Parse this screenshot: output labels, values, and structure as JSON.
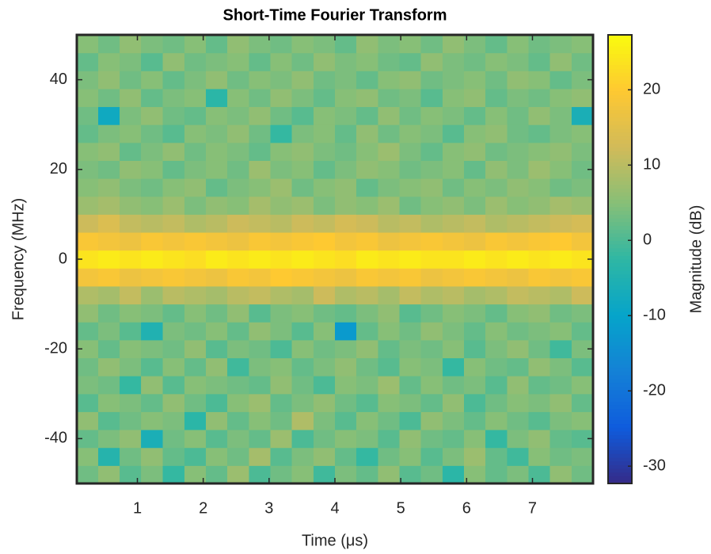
{
  "chart_data": {
    "type": "heatmap",
    "title": "Short-Time Fourier Transform",
    "x_label": "Time (μs)",
    "y_label": "Frequency (MHz)",
    "colorbar_label": "Magnitude (dB)",
    "xlim": [
      0.08,
      7.92
    ],
    "xticks": [
      1,
      2,
      3,
      4,
      5,
      6,
      7
    ],
    "ylim": [
      -50,
      50
    ],
    "yticks": [
      -40,
      -20,
      0,
      20,
      40
    ],
    "clim": [
      -32.3,
      27.3
    ],
    "cticks": [
      -30,
      -20,
      -10,
      0,
      10,
      20
    ],
    "colormap": [
      "#352a87",
      "#0f5cdd",
      "#1481d6",
      "#06a4ca",
      "#2eb7a4",
      "#87bf77",
      "#d1bb59",
      "#fec832",
      "#f9fb0e"
    ],
    "x": [
      0.24,
      0.57,
      0.89,
      1.22,
      1.55,
      1.88,
      2.2,
      2.53,
      2.86,
      3.18,
      3.51,
      3.84,
      4.16,
      4.49,
      4.82,
      5.14,
      5.47,
      5.8,
      6.12,
      6.45,
      6.78,
      7.1,
      7.43,
      7.76
    ],
    "y": [
      -48,
      -44,
      -40,
      -36,
      -32,
      -28,
      -24,
      -20,
      -16,
      -12,
      -8,
      -4,
      0,
      4,
      8,
      12,
      16,
      20,
      24,
      28,
      32,
      36,
      40,
      44,
      48
    ],
    "z": [
      [
        3,
        6,
        1,
        4,
        -2,
        5,
        2,
        7,
        0,
        3,
        5,
        -1,
        4,
        2,
        6,
        1,
        3,
        -3,
        5,
        2,
        4,
        0,
        6,
        3
      ],
      [
        5,
        -4,
        3,
        6,
        2,
        0,
        5,
        3,
        8,
        1,
        4,
        6,
        2,
        -2,
        3,
        5,
        1,
        4,
        7,
        2,
        -1,
        5,
        3,
        4
      ],
      [
        2,
        4,
        6,
        -6,
        3,
        5,
        1,
        4,
        2,
        7,
        0,
        3,
        5,
        4,
        1,
        6,
        3,
        2,
        5,
        -2,
        4,
        6,
        2,
        1
      ],
      [
        6,
        1,
        3,
        5,
        4,
        -3,
        6,
        2,
        5,
        3,
        9,
        4,
        1,
        5,
        3,
        0,
        6,
        4,
        2,
        5,
        3,
        1,
        4,
        5
      ],
      [
        1,
        5,
        4,
        2,
        6,
        3,
        0,
        5,
        7,
        2,
        4,
        6,
        3,
        1,
        5,
        4,
        2,
        6,
        0,
        3,
        5,
        4,
        6,
        2
      ],
      [
        4,
        3,
        -2,
        6,
        1,
        5,
        4,
        3,
        2,
        6,
        3,
        0,
        5,
        4,
        7,
        2,
        5,
        3,
        4,
        1,
        6,
        2,
        3,
        5
      ],
      [
        3,
        6,
        4,
        1,
        5,
        2,
        6,
        -1,
        4,
        5,
        2,
        4,
        6,
        3,
        1,
        5,
        4,
        -2,
        5,
        3,
        2,
        6,
        4,
        1
      ],
      [
        5,
        2,
        5,
        4,
        3,
        6,
        1,
        4,
        3,
        0,
        5,
        3,
        4,
        6,
        2,
        4,
        3,
        5,
        1,
        4,
        6,
        3,
        -1,
        4
      ],
      [
        2,
        4,
        1,
        -5,
        4,
        3,
        5,
        2,
        6,
        4,
        1,
        5,
        -12,
        2,
        5,
        3,
        6,
        4,
        2,
        5,
        3,
        4,
        5,
        2
      ],
      [
        6,
        3,
        5,
        4,
        2,
        5,
        3,
        6,
        1,
        4,
        5,
        3,
        2,
        4,
        6,
        1,
        3,
        5,
        4,
        2,
        5,
        6,
        3,
        4
      ],
      [
        9,
        8,
        11,
        7,
        10,
        9,
        8,
        10,
        11,
        9,
        8,
        12,
        9,
        10,
        8,
        11,
        9,
        10,
        8,
        9,
        11,
        10,
        9,
        12
      ],
      [
        18,
        19,
        17,
        18,
        19,
        18,
        17,
        19,
        18,
        20,
        19,
        18,
        17,
        19,
        18,
        19,
        17,
        18,
        19,
        18,
        17,
        19,
        18,
        19
      ],
      [
        24,
        25,
        24,
        25,
        24,
        23,
        25,
        24,
        25,
        24,
        25,
        24,
        23,
        25,
        24,
        25,
        24,
        24,
        25,
        24,
        25,
        24,
        25,
        24
      ],
      [
        19,
        18,
        17,
        19,
        18,
        19,
        18,
        17,
        19,
        18,
        19,
        20,
        18,
        19,
        17,
        18,
        19,
        18,
        17,
        19,
        18,
        19,
        20,
        18
      ],
      [
        12,
        14,
        11,
        10,
        11,
        9,
        10,
        12,
        11,
        10,
        12,
        11,
        13,
        12,
        10,
        11,
        9,
        10,
        11,
        9,
        10,
        11,
        12,
        13
      ],
      [
        7,
        8,
        6,
        5,
        7,
        4,
        6,
        5,
        8,
        6,
        7,
        4,
        6,
        5,
        7,
        3,
        5,
        6,
        4,
        7,
        5,
        6,
        8,
        7
      ],
      [
        5,
        6,
        4,
        3,
        5,
        6,
        2,
        4,
        5,
        7,
        3,
        5,
        6,
        2,
        4,
        5,
        6,
        3,
        5,
        4,
        6,
        5,
        3,
        4
      ],
      [
        4,
        3,
        6,
        5,
        2,
        4,
        5,
        3,
        7,
        4,
        5,
        2,
        4,
        6,
        5,
        3,
        4,
        5,
        2,
        6,
        4,
        7,
        5,
        3
      ],
      [
        5,
        6,
        2,
        4,
        6,
        3,
        5,
        4,
        2,
        5,
        6,
        4,
        3,
        5,
        7,
        4,
        2,
        5,
        6,
        3,
        4,
        5,
        6,
        4
      ],
      [
        2,
        4,
        5,
        3,
        1,
        5,
        4,
        6,
        3,
        -2,
        4,
        5,
        2,
        6,
        3,
        5,
        4,
        1,
        5,
        6,
        3,
        2,
        4,
        5
      ],
      [
        3,
        -8,
        4,
        6,
        3,
        2,
        5,
        4,
        6,
        3,
        1,
        5,
        4,
        2,
        6,
        3,
        5,
        4,
        2,
        5,
        3,
        6,
        4,
        -6
      ],
      [
        5,
        3,
        6,
        2,
        4,
        5,
        -3,
        5,
        3,
        6,
        4,
        2,
        5,
        6,
        3,
        4,
        1,
        5,
        6,
        2,
        4,
        3,
        5,
        6
      ],
      [
        4,
        6,
        3,
        5,
        2,
        4,
        6,
        3,
        5,
        4,
        6,
        3,
        4,
        2,
        5,
        6,
        3,
        4,
        5,
        3,
        6,
        5,
        2,
        4
      ],
      [
        2,
        5,
        4,
        1,
        6,
        3,
        4,
        5,
        2,
        5,
        3,
        6,
        4,
        5,
        3,
        2,
        6,
        4,
        3,
        5,
        4,
        2,
        6,
        3
      ],
      [
        5,
        3,
        6,
        4,
        3,
        5,
        2,
        6,
        4,
        3,
        5,
        4,
        2,
        6,
        4,
        5,
        3,
        6,
        4,
        2,
        5,
        3,
        4,
        5
      ]
    ]
  }
}
